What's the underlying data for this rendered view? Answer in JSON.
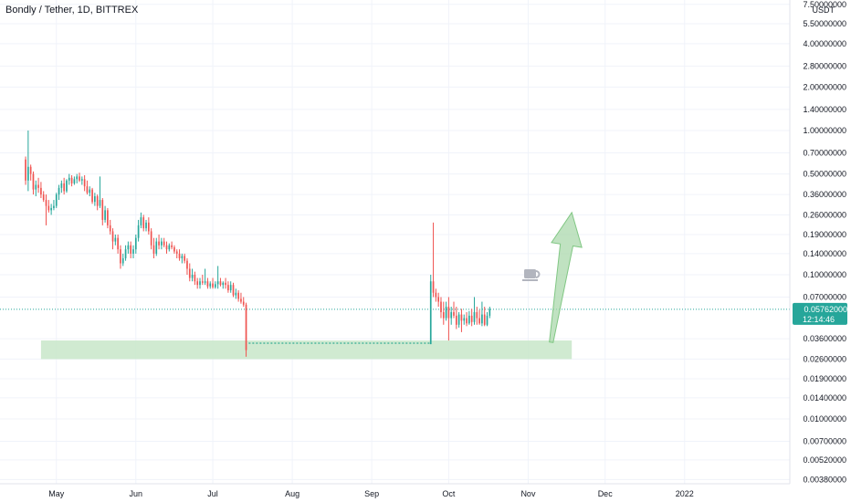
{
  "header": {
    "title": "Bondly / Tether, 1D, BITTREX"
  },
  "axis": {
    "currency": "USDT"
  },
  "current_price": {
    "value": "0.05762000",
    "countdown": "12:14:46",
    "badge_color": "#26a69a"
  },
  "colors": {
    "up": "#26a69a",
    "down": "#ef5350",
    "zone": "#c8e6c9",
    "arrow": "#a5d6a7",
    "dashed": "#089981"
  },
  "icons": {
    "marker": "coffee-cup-icon"
  },
  "chart_data": {
    "type": "candlestick",
    "symbol": "Bondly / Tether",
    "timeframe": "1D",
    "exchange": "BITTREX",
    "y_scale": "log",
    "y_ticks": [
      "7.50000000",
      "5.50000000",
      "4.00000000",
      "2.80000000",
      "2.00000000",
      "1.40000000",
      "1.00000000",
      "0.70000000",
      "0.50000000",
      "0.36000000",
      "0.26000000",
      "0.19000000",
      "0.14000000",
      "0.10000000",
      "0.07000000",
      "0.05762000",
      "0.03600000",
      "0.02600000",
      "0.01900000",
      "0.01400000",
      "0.01000000",
      "0.00700000",
      "0.00520000",
      "0.00380000"
    ],
    "x_ticks": [
      "May",
      "Jun",
      "Jul",
      "Aug",
      "Sep",
      "Oct",
      "Nov",
      "Dec",
      "2022"
    ],
    "x_range": [
      "2021-04-14",
      "2022-01-31"
    ],
    "support_zone": {
      "from": "2021-04-25",
      "to": "2021-11-18",
      "low": 0.026,
      "high": 0.035
    },
    "dashed_line": {
      "from": "2021-07-15",
      "to": "2021-09-24",
      "value": 0.0335
    },
    "projection_arrow": {
      "from": "2021-11-10",
      "to": "2021-11-18",
      "start": 0.034,
      "end": 0.27
    },
    "candles": [
      [
        "2021-04-19",
        0.63,
        0.66,
        0.42,
        0.45
      ],
      [
        "2021-04-20",
        0.45,
        1.0,
        0.38,
        0.56
      ],
      [
        "2021-04-21",
        0.56,
        0.58,
        0.45,
        0.5
      ],
      [
        "2021-04-22",
        0.5,
        0.52,
        0.36,
        0.39
      ],
      [
        "2021-04-23",
        0.39,
        0.45,
        0.35,
        0.42
      ],
      [
        "2021-04-24",
        0.42,
        0.47,
        0.37,
        0.4
      ],
      [
        "2021-04-25",
        0.4,
        0.44,
        0.34,
        0.36
      ],
      [
        "2021-04-26",
        0.36,
        0.38,
        0.32,
        0.33
      ],
      [
        "2021-04-27",
        0.33,
        0.36,
        0.22,
        0.3
      ],
      [
        "2021-04-28",
        0.3,
        0.33,
        0.27,
        0.28
      ],
      [
        "2021-04-29",
        0.28,
        0.31,
        0.26,
        0.29
      ],
      [
        "2021-04-30",
        0.29,
        0.33,
        0.28,
        0.3
      ],
      [
        "2021-05-01",
        0.3,
        0.37,
        0.29,
        0.36
      ],
      [
        "2021-05-02",
        0.36,
        0.42,
        0.33,
        0.4
      ],
      [
        "2021-05-03",
        0.4,
        0.45,
        0.37,
        0.43
      ],
      [
        "2021-05-04",
        0.43,
        0.47,
        0.36,
        0.38
      ],
      [
        "2021-05-05",
        0.38,
        0.46,
        0.37,
        0.45
      ],
      [
        "2021-05-06",
        0.45,
        0.5,
        0.42,
        0.47
      ],
      [
        "2021-05-07",
        0.47,
        0.49,
        0.41,
        0.43
      ],
      [
        "2021-05-08",
        0.43,
        0.48,
        0.42,
        0.46
      ],
      [
        "2021-05-09",
        0.46,
        0.5,
        0.43,
        0.48
      ],
      [
        "2021-05-10",
        0.48,
        0.51,
        0.44,
        0.45
      ],
      [
        "2021-05-11",
        0.45,
        0.48,
        0.42,
        0.46
      ],
      [
        "2021-05-12",
        0.46,
        0.49,
        0.38,
        0.41
      ],
      [
        "2021-05-13",
        0.41,
        0.45,
        0.36,
        0.37
      ],
      [
        "2021-05-14",
        0.37,
        0.41,
        0.35,
        0.39
      ],
      [
        "2021-05-15",
        0.39,
        0.4,
        0.31,
        0.32
      ],
      [
        "2021-05-16",
        0.32,
        0.37,
        0.3,
        0.35
      ],
      [
        "2021-05-17",
        0.35,
        0.36,
        0.28,
        0.3
      ],
      [
        "2021-05-18",
        0.3,
        0.48,
        0.29,
        0.33
      ],
      [
        "2021-05-19",
        0.33,
        0.34,
        0.22,
        0.24
      ],
      [
        "2021-05-20",
        0.24,
        0.3,
        0.23,
        0.28
      ],
      [
        "2021-05-21",
        0.28,
        0.29,
        0.21,
        0.22
      ],
      [
        "2021-05-22",
        0.22,
        0.24,
        0.19,
        0.2
      ],
      [
        "2021-05-23",
        0.2,
        0.21,
        0.15,
        0.17
      ],
      [
        "2021-05-24",
        0.17,
        0.19,
        0.16,
        0.18
      ],
      [
        "2021-05-25",
        0.18,
        0.19,
        0.14,
        0.15
      ],
      [
        "2021-05-26",
        0.15,
        0.16,
        0.11,
        0.12
      ],
      [
        "2021-05-27",
        0.12,
        0.14,
        0.115,
        0.13
      ],
      [
        "2021-05-28",
        0.13,
        0.16,
        0.125,
        0.15
      ],
      [
        "2021-05-29",
        0.15,
        0.17,
        0.14,
        0.16
      ],
      [
        "2021-05-30",
        0.16,
        0.17,
        0.13,
        0.14
      ],
      [
        "2021-05-31",
        0.14,
        0.16,
        0.13,
        0.15
      ],
      [
        "2021-06-01",
        0.15,
        0.19,
        0.14,
        0.18
      ],
      [
        "2021-06-02",
        0.18,
        0.24,
        0.17,
        0.22
      ],
      [
        "2021-06-03",
        0.22,
        0.27,
        0.21,
        0.25
      ],
      [
        "2021-06-04",
        0.25,
        0.26,
        0.2,
        0.21
      ],
      [
        "2021-06-05",
        0.21,
        0.24,
        0.2,
        0.23
      ],
      [
        "2021-06-06",
        0.23,
        0.25,
        0.19,
        0.2
      ],
      [
        "2021-06-07",
        0.2,
        0.21,
        0.15,
        0.16
      ],
      [
        "2021-06-08",
        0.16,
        0.18,
        0.13,
        0.14
      ],
      [
        "2021-06-09",
        0.14,
        0.18,
        0.135,
        0.17
      ],
      [
        "2021-06-10",
        0.17,
        0.19,
        0.15,
        0.16
      ],
      [
        "2021-06-11",
        0.16,
        0.18,
        0.15,
        0.17
      ],
      [
        "2021-06-12",
        0.17,
        0.18,
        0.155,
        0.16
      ],
      [
        "2021-06-13",
        0.16,
        0.17,
        0.14,
        0.15
      ],
      [
        "2021-06-14",
        0.15,
        0.165,
        0.145,
        0.16
      ],
      [
        "2021-06-15",
        0.16,
        0.17,
        0.15,
        0.155
      ],
      [
        "2021-06-16",
        0.155,
        0.16,
        0.14,
        0.145
      ],
      [
        "2021-06-17",
        0.145,
        0.15,
        0.13,
        0.14
      ],
      [
        "2021-06-18",
        0.14,
        0.15,
        0.125,
        0.13
      ],
      [
        "2021-06-19",
        0.13,
        0.14,
        0.12,
        0.135
      ],
      [
        "2021-06-20",
        0.135,
        0.14,
        0.12,
        0.125
      ],
      [
        "2021-06-21",
        0.125,
        0.13,
        0.1,
        0.11
      ],
      [
        "2021-06-22",
        0.11,
        0.12,
        0.09,
        0.095
      ],
      [
        "2021-06-23",
        0.095,
        0.11,
        0.09,
        0.1
      ],
      [
        "2021-06-24",
        0.1,
        0.105,
        0.085,
        0.09
      ],
      [
        "2021-06-25",
        0.09,
        0.095,
        0.08,
        0.085
      ],
      [
        "2021-06-26",
        0.085,
        0.095,
        0.08,
        0.09
      ],
      [
        "2021-06-27",
        0.09,
        0.1,
        0.085,
        0.088
      ],
      [
        "2021-06-28",
        0.088,
        0.11,
        0.085,
        0.09
      ],
      [
        "2021-06-29",
        0.09,
        0.095,
        0.08,
        0.083
      ],
      [
        "2021-06-30",
        0.083,
        0.09,
        0.08,
        0.087
      ],
      [
        "2021-07-01",
        0.087,
        0.095,
        0.08,
        0.082
      ],
      [
        "2021-07-02",
        0.082,
        0.09,
        0.08,
        0.086
      ],
      [
        "2021-07-03",
        0.086,
        0.115,
        0.08,
        0.09
      ],
      [
        "2021-07-04",
        0.09,
        0.095,
        0.083,
        0.085
      ],
      [
        "2021-07-05",
        0.085,
        0.09,
        0.08,
        0.088
      ],
      [
        "2021-07-06",
        0.088,
        0.095,
        0.08,
        0.085
      ],
      [
        "2021-07-07",
        0.085,
        0.09,
        0.075,
        0.078
      ],
      [
        "2021-07-08",
        0.078,
        0.09,
        0.075,
        0.085
      ],
      [
        "2021-07-09",
        0.085,
        0.088,
        0.07,
        0.072
      ],
      [
        "2021-07-10",
        0.072,
        0.08,
        0.068,
        0.075
      ],
      [
        "2021-07-11",
        0.075,
        0.078,
        0.065,
        0.068
      ],
      [
        "2021-07-12",
        0.068,
        0.075,
        0.063,
        0.065
      ],
      [
        "2021-07-13",
        0.065,
        0.07,
        0.06,
        0.062
      ],
      [
        "2021-07-14",
        0.062,
        0.064,
        0.027,
        0.03
      ],
      [
        "2021-09-24",
        0.033,
        0.1,
        0.033,
        0.09
      ],
      [
        "2021-09-25",
        0.09,
        0.23,
        0.07,
        0.075
      ],
      [
        "2021-09-26",
        0.075,
        0.08,
        0.065,
        0.07
      ],
      [
        "2021-09-27",
        0.07,
        0.075,
        0.06,
        0.065
      ],
      [
        "2021-09-28",
        0.065,
        0.07,
        0.05,
        0.055
      ],
      [
        "2021-09-29",
        0.055,
        0.065,
        0.045,
        0.05
      ],
      [
        "2021-09-30",
        0.05,
        0.065,
        0.048,
        0.06
      ],
      [
        "2021-10-01",
        0.06,
        0.07,
        0.035,
        0.05
      ],
      [
        "2021-10-02",
        0.05,
        0.06,
        0.045,
        0.055
      ],
      [
        "2021-10-03",
        0.055,
        0.065,
        0.05,
        0.052
      ],
      [
        "2021-10-04",
        0.052,
        0.06,
        0.042,
        0.045
      ],
      [
        "2021-10-05",
        0.045,
        0.055,
        0.043,
        0.053
      ],
      [
        "2021-10-06",
        0.053,
        0.058,
        0.04,
        0.048
      ],
      [
        "2021-10-07",
        0.048,
        0.053,
        0.045,
        0.05
      ],
      [
        "2021-10-08",
        0.05,
        0.055,
        0.044,
        0.046
      ],
      [
        "2021-10-09",
        0.046,
        0.056,
        0.045,
        0.052
      ],
      [
        "2021-10-10",
        0.052,
        0.058,
        0.044,
        0.047
      ],
      [
        "2021-10-11",
        0.047,
        0.07,
        0.045,
        0.055
      ],
      [
        "2021-10-12",
        0.055,
        0.06,
        0.045,
        0.05
      ],
      [
        "2021-10-13",
        0.05,
        0.057,
        0.045,
        0.046
      ],
      [
        "2021-10-14",
        0.046,
        0.065,
        0.044,
        0.053
      ],
      [
        "2021-10-15",
        0.053,
        0.06,
        0.044,
        0.045
      ],
      [
        "2021-10-16",
        0.045,
        0.055,
        0.044,
        0.052
      ],
      [
        "2021-10-17",
        0.052,
        0.06,
        0.05,
        0.058
      ]
    ]
  }
}
